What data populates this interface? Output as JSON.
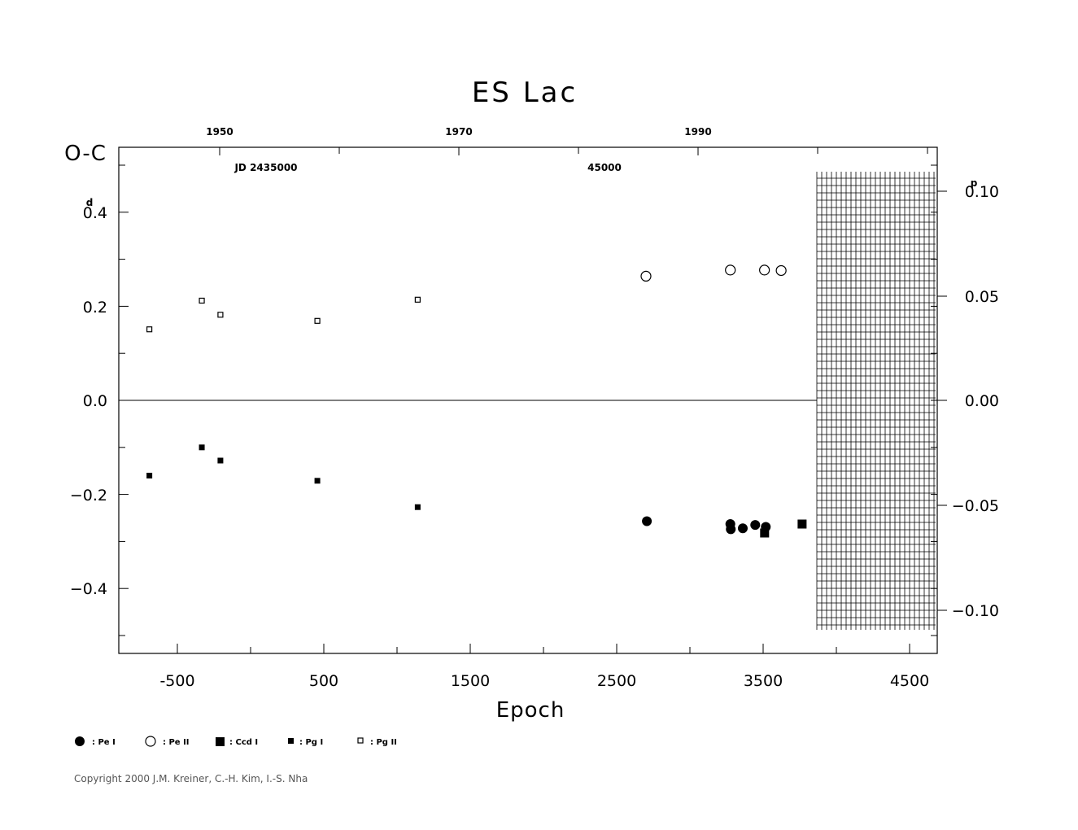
{
  "chart_data": {
    "type": "scatter",
    "title": "ES Lac",
    "xlabel": "Epoch",
    "ylabel": "O-C",
    "ylabel_unit": "d",
    "y2_unit": "p",
    "xlim": [
      -900,
      4700
    ],
    "ylim": [
      -0.54,
      0.54
    ],
    "x_ticks": [
      "-500",
      "500",
      "1500",
      "2500",
      "3500",
      "4500"
    ],
    "y_ticks": [
      "0.4",
      "0.2",
      "0.0",
      "−0.2",
      "−0.4"
    ],
    "y2_ticks": [
      "0.10",
      "0.05",
      "0.00",
      "−0.05",
      "−0.10"
    ],
    "year_ticks": [
      "1950",
      "1970",
      "1990"
    ],
    "jd_labels": [
      "JD  2435000",
      "45000"
    ],
    "series": [
      {
        "name": ": Pe I",
        "marker": "filled-circle",
        "x": [
          2706,
          3276,
          3279,
          3361,
          3446,
          3518
        ],
        "y": [
          -0.257,
          -0.263,
          -0.274,
          -0.272,
          -0.265,
          -0.269
        ]
      },
      {
        "name": ": Pe II",
        "marker": "open-circle",
        "x": [
          2700,
          3276,
          3509,
          3623
        ],
        "y": [
          0.264,
          0.277,
          0.277,
          0.276
        ]
      },
      {
        "name": ": Ccd I",
        "marker": "filled-square",
        "x": [
          3510,
          3766
        ],
        "y": [
          -0.282,
          -0.263
        ]
      },
      {
        "name": ": Pg I",
        "marker": "small-filled-square",
        "x": [
          -691,
          -333,
          -206,
          456,
          1141
        ],
        "y": [
          -0.16,
          -0.1,
          -0.128,
          -0.171,
          -0.227
        ]
      },
      {
        "name": ": Pg II",
        "marker": "small-open-square",
        "x": [
          -691,
          -333,
          -206,
          456,
          1141
        ],
        "y": [
          0.151,
          0.212,
          0.182,
          0.169,
          0.214
        ]
      }
    ],
    "grid": false
  },
  "copyright": "Copyright 2000 J.M. Kreiner, C.-H. Kim, I.-S. Nha"
}
